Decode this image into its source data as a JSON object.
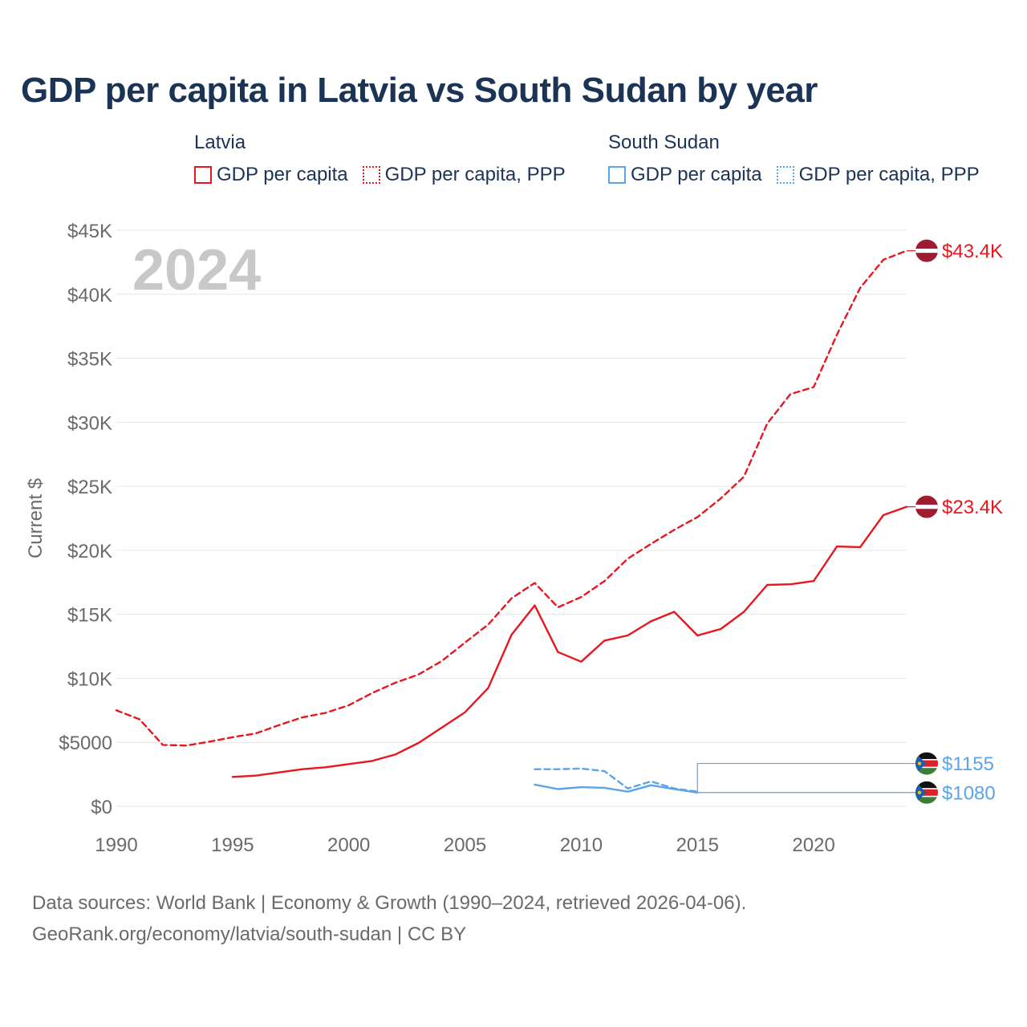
{
  "title": "GDP per capita in Latvia vs South Sudan by year",
  "legend": [
    {
      "country": "Latvia",
      "color": "#e8171f",
      "items": [
        {
          "label": "GDP per capita",
          "style": "solid"
        },
        {
          "label": "GDP per capita, PPP",
          "style": "dotted"
        }
      ]
    },
    {
      "country": "South Sudan",
      "color": "#5ba4e6",
      "items": [
        {
          "label": "GDP per capita",
          "style": "solid"
        },
        {
          "label": "GDP per capita, PPP",
          "style": "dotted"
        }
      ]
    }
  ],
  "footer": {
    "line1": "Data sources: World Bank | Economy & Growth (1990–2024, retrieved 2026-04-06).",
    "line2": "GeoRank.org/economy/latvia/south-sudan | CC BY"
  },
  "chart_data": {
    "type": "line",
    "title": "GDP per capita in Latvia vs South Sudan by year",
    "year_watermark": "2024",
    "ylabel": "Current $",
    "xlabel": "",
    "xlim": [
      1990,
      2024
    ],
    "ylim": [
      0,
      45000
    ],
    "grid": true,
    "y_ticks": [
      {
        "value": 0,
        "label": "$0"
      },
      {
        "value": 5000,
        "label": "$5000"
      },
      {
        "value": 10000,
        "label": "$10K"
      },
      {
        "value": 15000,
        "label": "$15K"
      },
      {
        "value": 20000,
        "label": "$20K"
      },
      {
        "value": 25000,
        "label": "$25K"
      },
      {
        "value": 30000,
        "label": "$30K"
      },
      {
        "value": 35000,
        "label": "$35K"
      },
      {
        "value": 40000,
        "label": "$40K"
      },
      {
        "value": 45000,
        "label": "$45K"
      }
    ],
    "x_ticks": [
      {
        "value": 1990,
        "label": "1990"
      },
      {
        "value": 1995,
        "label": "1995"
      },
      {
        "value": 2000,
        "label": "2000"
      },
      {
        "value": 2005,
        "label": "2005"
      },
      {
        "value": 2010,
        "label": "2010"
      },
      {
        "value": 2015,
        "label": "2015"
      },
      {
        "value": 2020,
        "label": "2020"
      }
    ],
    "series": [
      {
        "name": "Latvia GDP per capita, PPP",
        "country": "Latvia",
        "color": "#e8171f",
        "dash": "dashed",
        "x": [
          1990,
          1991,
          1992,
          1993,
          1994,
          1995,
          1996,
          1997,
          1998,
          1999,
          2000,
          2001,
          2002,
          2003,
          2004,
          2005,
          2006,
          2007,
          2008,
          2009,
          2010,
          2011,
          2012,
          2013,
          2014,
          2015,
          2016,
          2017,
          2018,
          2019,
          2020,
          2021,
          2022,
          2023,
          2024
        ],
        "values": [
          7500,
          6800,
          4800,
          4750,
          5050,
          5400,
          5700,
          6350,
          6950,
          7300,
          7900,
          8850,
          9650,
          10300,
          11350,
          12800,
          14200,
          16250,
          17450,
          15550,
          16350,
          17600,
          19350,
          20500,
          21600,
          22600,
          24050,
          25750,
          29900,
          32200,
          32750,
          36850,
          40500,
          42700,
          43400
        ]
      },
      {
        "name": "Latvia GDP per capita",
        "country": "Latvia",
        "color": "#e8171f",
        "dash": "solid",
        "x": [
          1995,
          1996,
          1997,
          1998,
          1999,
          2000,
          2001,
          2002,
          2003,
          2004,
          2005,
          2006,
          2007,
          2008,
          2009,
          2010,
          2011,
          2012,
          2013,
          2014,
          2015,
          2016,
          2017,
          2018,
          2019,
          2020,
          2021,
          2022,
          2023,
          2024
        ],
        "values": [
          2300,
          2400,
          2650,
          2900,
          3050,
          3300,
          3550,
          4050,
          4950,
          6150,
          7350,
          9250,
          13400,
          15700,
          12050,
          11300,
          12950,
          13350,
          14450,
          15200,
          13350,
          13850,
          15200,
          17300,
          17350,
          17600,
          20300,
          20250,
          22750,
          23400
        ]
      },
      {
        "name": "South Sudan GDP per capita, PPP",
        "country": "South Sudan",
        "color": "#5ba4e6",
        "dash": "dashed",
        "x": [
          2008,
          2009,
          2010,
          2011,
          2012,
          2013,
          2014,
          2015
        ],
        "values": [
          2900,
          2900,
          2950,
          2750,
          1400,
          1950,
          1400,
          1155
        ]
      },
      {
        "name": "South Sudan GDP per capita",
        "country": "South Sudan",
        "color": "#5ba4e6",
        "dash": "solid",
        "x": [
          2008,
          2009,
          2010,
          2011,
          2012,
          2013,
          2014,
          2015
        ],
        "values": [
          1700,
          1350,
          1500,
          1450,
          1150,
          1650,
          1350,
          1080
        ]
      }
    ],
    "end_labels": [
      {
        "series": "Latvia GDP per capita, PPP",
        "text": "$43.4K",
        "value": 43400,
        "flag": "latvia",
        "color": "#e8171f"
      },
      {
        "series": "Latvia GDP per capita",
        "text": "$23.4K",
        "value": 23400,
        "flag": "latvia",
        "color": "#e8171f"
      },
      {
        "series": "South Sudan GDP per capita, PPP",
        "text": "$1155",
        "value": 1155,
        "flag": "south-sudan",
        "color": "#5ba4e6"
      },
      {
        "series": "South Sudan GDP per capita",
        "text": "$1080",
        "value": 1080,
        "flag": "south-sudan",
        "color": "#5ba4e6"
      }
    ]
  }
}
